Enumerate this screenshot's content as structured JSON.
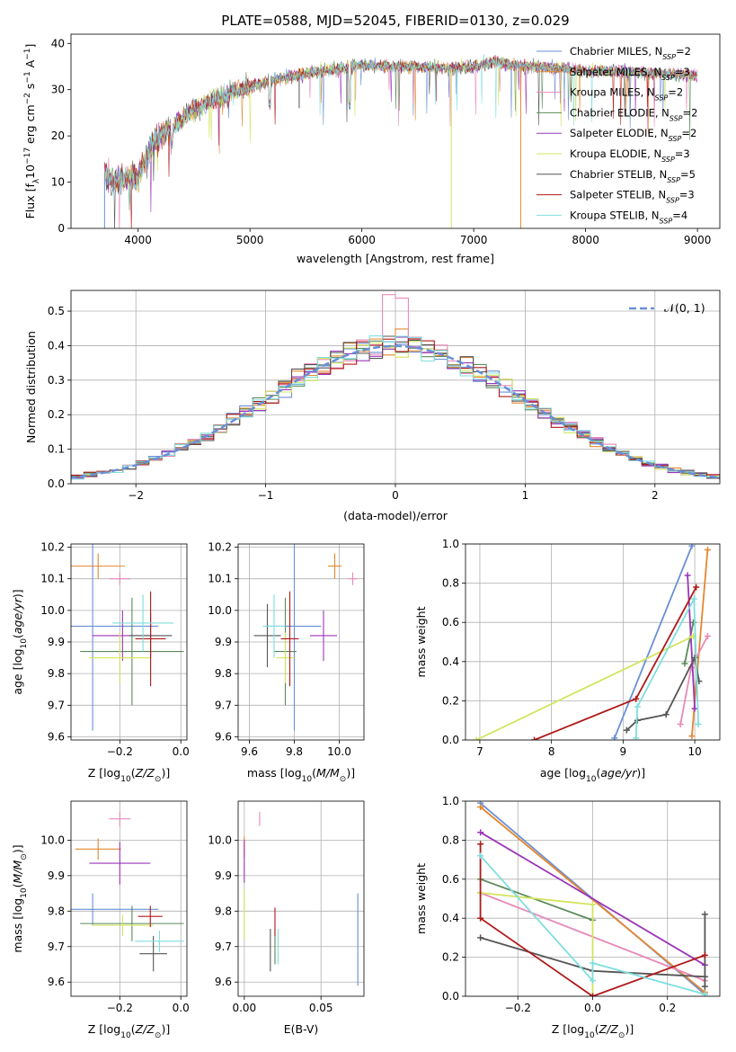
{
  "title": "PLATE=0588, MJD=52045, FIBERID=0130, z=0.029",
  "colors": [
    "#6a8fd6",
    "#e4872f",
    "#e889b8",
    "#5b8a5b",
    "#9b35b8",
    "#d3e45e",
    "#555555",
    "#b01818",
    "#7fdede"
  ],
  "legend_spectrum": [
    "Chabrier MILES, N$_{SSP}$=2",
    "Salpeter MILES, N$_{SSP}$=3",
    "Kroupa MILES, N$_{SSP}$=2",
    "Chabrier ELODIE, N$_{SSP}$=2",
    "Salpeter ELODIE, N$_{SSP}$=2",
    "Kroupa ELODIE, N$_{SSP}$=3",
    "Chabrier STELIB, N$_{SSP}$=5",
    "Salpeter STELIB, N$_{SSP}$=3",
    "Kroupa STELIB, N$_{SSP}$=4"
  ],
  "legend_display": [
    {
      "t": "Chabrier MILES, N",
      "s": "SSP",
      "r": "=2"
    },
    {
      "t": "Salpeter MILES, N",
      "s": "SSP",
      "r": "=3"
    },
    {
      "t": "Kroupa MILES, N",
      "s": "SSP",
      "r": "=2"
    },
    {
      "t": "Chabrier ELODIE, N",
      "s": "SSP",
      "r": "=2"
    },
    {
      "t": "Salpeter ELODIE, N",
      "s": "SSP",
      "r": "=2"
    },
    {
      "t": "Kroupa ELODIE, N",
      "s": "SSP",
      "r": "=3"
    },
    {
      "t": "Chabrier STELIB, N",
      "s": "SSP",
      "r": "=5"
    },
    {
      "t": "Salpeter STELIB, N",
      "s": "SSP",
      "r": "=3"
    },
    {
      "t": "Kroupa STELIB, N",
      "s": "SSP",
      "r": "=4"
    }
  ],
  "chart_data": [
    {
      "id": "spectrum",
      "type": "line",
      "xlabel": "wavelength [Angstrom, rest frame]",
      "ylabel": "Flux [f_λ 10^-17 erg cm^-2 s^-1 A^-1]",
      "xlim": [
        3400,
        9200
      ],
      "ylim": [
        0,
        42
      ],
      "xticks": [
        4000,
        5000,
        6000,
        7000,
        8000,
        9000
      ],
      "yticks": [
        0,
        10,
        20,
        30,
        40
      ],
      "grid": false,
      "legend": "right",
      "continuum_x": [
        3700,
        3800,
        3900,
        4000,
        4100,
        4200,
        4400,
        4600,
        4800,
        5000,
        5200,
        5500,
        5800,
        6000,
        6200,
        6500,
        6800,
        7000,
        7200,
        7400,
        7600,
        7800,
        8000,
        8300,
        8600,
        9000
      ],
      "continuum_y": [
        12,
        10,
        11,
        11,
        17,
        20,
        24,
        27,
        29,
        30.5,
        32,
        33.5,
        34.5,
        35.5,
        35,
        35,
        34.5,
        35,
        36,
        35,
        35,
        34.5,
        34,
        34,
        33.5,
        33
      ],
      "drops": [
        {
          "x": 3700,
          "y": 0
        },
        {
          "x": 5440,
          "y": 26
        },
        {
          "x": 6800,
          "y": 0
        },
        {
          "x": 7420,
          "y": 0
        }
      ]
    },
    {
      "id": "residuals",
      "type": "step",
      "xlabel": "(data-model)/error",
      "ylabel": "Normed distribution",
      "xlim": [
        -2.5,
        2.5
      ],
      "ylim": [
        0,
        0.56
      ],
      "xticks": [
        -2,
        -1,
        0,
        1,
        2
      ],
      "yticks": [
        0.0,
        0.1,
        0.2,
        0.3,
        0.4,
        0.5
      ],
      "grid": true,
      "legend": "top-right",
      "reference_label": "N(0,1)",
      "bin_width": 0.1
    },
    {
      "id": "age_vs_Z",
      "type": "scatter",
      "xlabel": "Z [log10(Z/Z☉)]",
      "ylabel": "age  [log10(age/yr)]",
      "xlim": [
        -0.36,
        0.02
      ],
      "ylim": [
        9.59,
        10.21
      ],
      "xticks": [
        -0.2,
        0.0
      ],
      "yticks": [
        9.6,
        9.7,
        9.8,
        9.9,
        10.0,
        10.1,
        10.2
      ],
      "grid": true,
      "points": [
        {
          "x": -0.289,
          "y": 9.95,
          "xerr": 0.215,
          "yerr": 0.33
        },
        {
          "x": -0.271,
          "y": 10.14,
          "xerr": 0.088,
          "yerr": 0.04
        },
        {
          "x": -0.2,
          "y": 10.1,
          "xerr": 0.035,
          "yerr": 0.02
        },
        {
          "x": -0.16,
          "y": 9.87,
          "xerr": 0.17,
          "yerr": 0.17
        },
        {
          "x": -0.191,
          "y": 9.92,
          "xerr": 0.1,
          "yerr": 0.08
        },
        {
          "x": -0.2,
          "y": 9.85,
          "xerr": 0.1,
          "yerr": 0.08
        },
        {
          "x": -0.099,
          "y": 9.92,
          "xerr": 0.07,
          "yerr": 0.07
        },
        {
          "x": -0.099,
          "y": 9.91,
          "xerr": 0.05,
          "yerr": 0.15
        },
        {
          "x": -0.124,
          "y": 9.96,
          "xerr": 0.1,
          "yerr": 0.09
        }
      ]
    },
    {
      "id": "age_vs_mass",
      "type": "scatter",
      "xlabel": "mass [log10(M/M☉)]",
      "ylabel": "",
      "xlim": [
        9.55,
        10.11
      ],
      "ylim": [
        9.59,
        10.21
      ],
      "xticks": [
        9.6,
        9.8,
        10.0
      ],
      "yticks": [
        9.6,
        9.7,
        9.8,
        9.9,
        10.0,
        10.1,
        10.2
      ],
      "grid": true,
      "points": [
        {
          "x": 9.8,
          "y": 9.95,
          "xerr": 0.12,
          "yerr": 0.33
        },
        {
          "x": 9.98,
          "y": 10.14,
          "xerr": 0.03,
          "yerr": 0.04
        },
        {
          "x": 10.06,
          "y": 10.1,
          "xerr": 0.02,
          "yerr": 0.02
        },
        {
          "x": 9.76,
          "y": 9.87,
          "xerr": 0.05,
          "yerr": 0.17
        },
        {
          "x": 9.93,
          "y": 9.92,
          "xerr": 0.06,
          "yerr": 0.08
        },
        {
          "x": 9.76,
          "y": 9.85,
          "xerr": 0.04,
          "yerr": 0.08
        },
        {
          "x": 9.68,
          "y": 9.92,
          "xerr": 0.06,
          "yerr": 0.1
        },
        {
          "x": 9.78,
          "y": 9.91,
          "xerr": 0.04,
          "yerr": 0.15
        },
        {
          "x": 9.71,
          "y": 9.95,
          "xerr": 0.05,
          "yerr": 0.1
        }
      ]
    },
    {
      "id": "massweight_vs_age",
      "type": "line",
      "xlabel": "age  [log10(age/yr)]",
      "ylabel": "mass weight",
      "xlim": [
        6.8,
        10.35
      ],
      "ylim": [
        0,
        1
      ],
      "xticks": [
        7,
        8,
        9,
        10
      ],
      "yticks": [
        0.0,
        0.2,
        0.4,
        0.6,
        0.8,
        1.0
      ],
      "grid": true,
      "series": [
        {
          "x": [
            8.88,
            9.96
          ],
          "y": [
            0.01,
            0.99
          ]
        },
        {
          "x": [
            9.96,
            10.18
          ],
          "y": [
            0.02,
            0.97
          ]
        },
        {
          "x": [
            9.8,
            9.95,
            10.18
          ],
          "y": [
            0.08,
            0.37,
            0.53
          ]
        },
        {
          "x": [
            9.98,
            9.86
          ],
          "y": [
            0.6,
            0.39
          ]
        },
        {
          "x": [
            9.9,
            10.0
          ],
          "y": [
            0.84,
            0.16
          ]
        },
        {
          "x": [
            6.95,
            9.98
          ],
          "y": [
            0.0,
            0.53
          ]
        },
        {
          "x": [
            9.05,
            9.2,
            9.6,
            10.0,
            10.06
          ],
          "y": [
            0.05,
            0.1,
            0.13,
            0.42,
            0.3
          ]
        },
        {
          "x": [
            7.76,
            9.18,
            10.02
          ],
          "y": [
            0.0,
            0.21,
            0.78
          ]
        },
        {
          "x": [
            9.18,
            9.2,
            9.99,
            10.05
          ],
          "y": [
            0.01,
            0.17,
            0.72,
            0.08
          ]
        }
      ]
    },
    {
      "id": "mass_vs_Z",
      "type": "scatter",
      "xlabel": "Z [log10(Z/Z☉)]",
      "ylabel": "mass [log10(M/M☉)]",
      "xlim": [
        -0.36,
        0.02
      ],
      "ylim": [
        9.56,
        10.11
      ],
      "xticks": [
        -0.2,
        0.0
      ],
      "yticks": [
        9.6,
        9.7,
        9.8,
        9.9,
        10.0
      ],
      "grid": true,
      "points": [
        {
          "x": -0.289,
          "y": 9.805,
          "xerr": 0.215,
          "yerr": 0.045
        },
        {
          "x": -0.271,
          "y": 9.975,
          "xerr": 0.075,
          "yerr": 0.03
        },
        {
          "x": -0.2,
          "y": 10.06,
          "xerr": 0.035,
          "yerr": 0.02
        },
        {
          "x": -0.16,
          "y": 9.765,
          "xerr": 0.17,
          "yerr": 0.05
        },
        {
          "x": -0.2,
          "y": 9.935,
          "xerr": 0.1,
          "yerr": 0.06
        },
        {
          "x": -0.191,
          "y": 9.76,
          "xerr": 0.1,
          "yerr": 0.03
        },
        {
          "x": -0.09,
          "y": 9.68,
          "xerr": 0.045,
          "yerr": 0.05
        },
        {
          "x": -0.1,
          "y": 9.785,
          "xerr": 0.04,
          "yerr": 0.03
        },
        {
          "x": -0.07,
          "y": 9.715,
          "xerr": 0.08,
          "yerr": 0.03
        }
      ]
    },
    {
      "id": "mass_vs_EBV",
      "type": "scatter",
      "xlabel": "E(B-V)",
      "ylabel": "",
      "xlim": [
        -0.004,
        0.078
      ],
      "ylim": [
        9.56,
        10.11
      ],
      "xticks": [
        0.0,
        0.05
      ],
      "yticks": [
        9.6,
        9.7,
        9.8,
        9.9,
        10.0
      ],
      "grid": true,
      "points": [
        {
          "x": 0.074,
          "y": 9.72,
          "xerr": 0,
          "yerr": 0.13
        },
        {
          "x": 0.0,
          "y": 9.98,
          "xerr": 0,
          "yerr": 0.03
        },
        {
          "x": 0.01,
          "y": 10.06,
          "xerr": 0,
          "yerr": 0.02
        },
        {
          "x": 0.02,
          "y": 9.7,
          "xerr": 0,
          "yerr": 0.05
        },
        {
          "x": 0.0,
          "y": 9.94,
          "xerr": 0,
          "yerr": 0.06
        },
        {
          "x": 0.0,
          "y": 9.79,
          "xerr": 0,
          "yerr": 0.07
        },
        {
          "x": 0.017,
          "y": 9.69,
          "xerr": 0,
          "yerr": 0.06
        },
        {
          "x": 0.02,
          "y": 9.77,
          "xerr": 0,
          "yerr": 0.04
        },
        {
          "x": 0.022,
          "y": 9.7,
          "xerr": 0,
          "yerr": 0.05
        }
      ]
    },
    {
      "id": "massweight_vs_Z",
      "type": "line",
      "xlabel": "Z [log10(Z/Z☉)]",
      "ylabel": "mass weight",
      "xlim": [
        -0.34,
        0.34
      ],
      "ylim": [
        0,
        1
      ],
      "xticks": [
        -0.2,
        0.0,
        0.2
      ],
      "yticks": [
        0.0,
        0.2,
        0.4,
        0.6,
        0.8,
        1.0
      ],
      "grid": true,
      "series": [
        {
          "x": [
            -0.3,
            0.3
          ],
          "y": [
            0.99,
            0.01
          ]
        },
        {
          "x": [
            -0.3,
            0.3
          ],
          "y": [
            0.97,
            0.02
          ]
        },
        {
          "x": [
            -0.3,
            0.3
          ],
          "y": [
            0.53,
            0.08
          ]
        },
        {
          "x": [
            -0.3,
            0.0
          ],
          "y": [
            0.6,
            0.39
          ]
        },
        {
          "x": [
            -0.3,
            0.3
          ],
          "y": [
            0.84,
            0.16
          ]
        },
        {
          "x": [
            -0.3,
            0.0,
            0.0
          ],
          "y": [
            0.53,
            0.47,
            0.0
          ]
        },
        {
          "x": [
            -0.3,
            0.0,
            0.3,
            0.3,
            0.3
          ],
          "y": [
            0.3,
            0.13,
            0.1,
            0.42,
            0.05
          ]
        },
        {
          "x": [
            -0.3,
            -0.3,
            0.0,
            0.3
          ],
          "y": [
            0.78,
            0.4,
            0.0,
            0.21
          ]
        },
        {
          "x": [
            -0.3,
            0.0,
            0.0,
            0.3
          ],
          "y": [
            0.72,
            0.08,
            0.17,
            0.01
          ]
        }
      ]
    }
  ]
}
